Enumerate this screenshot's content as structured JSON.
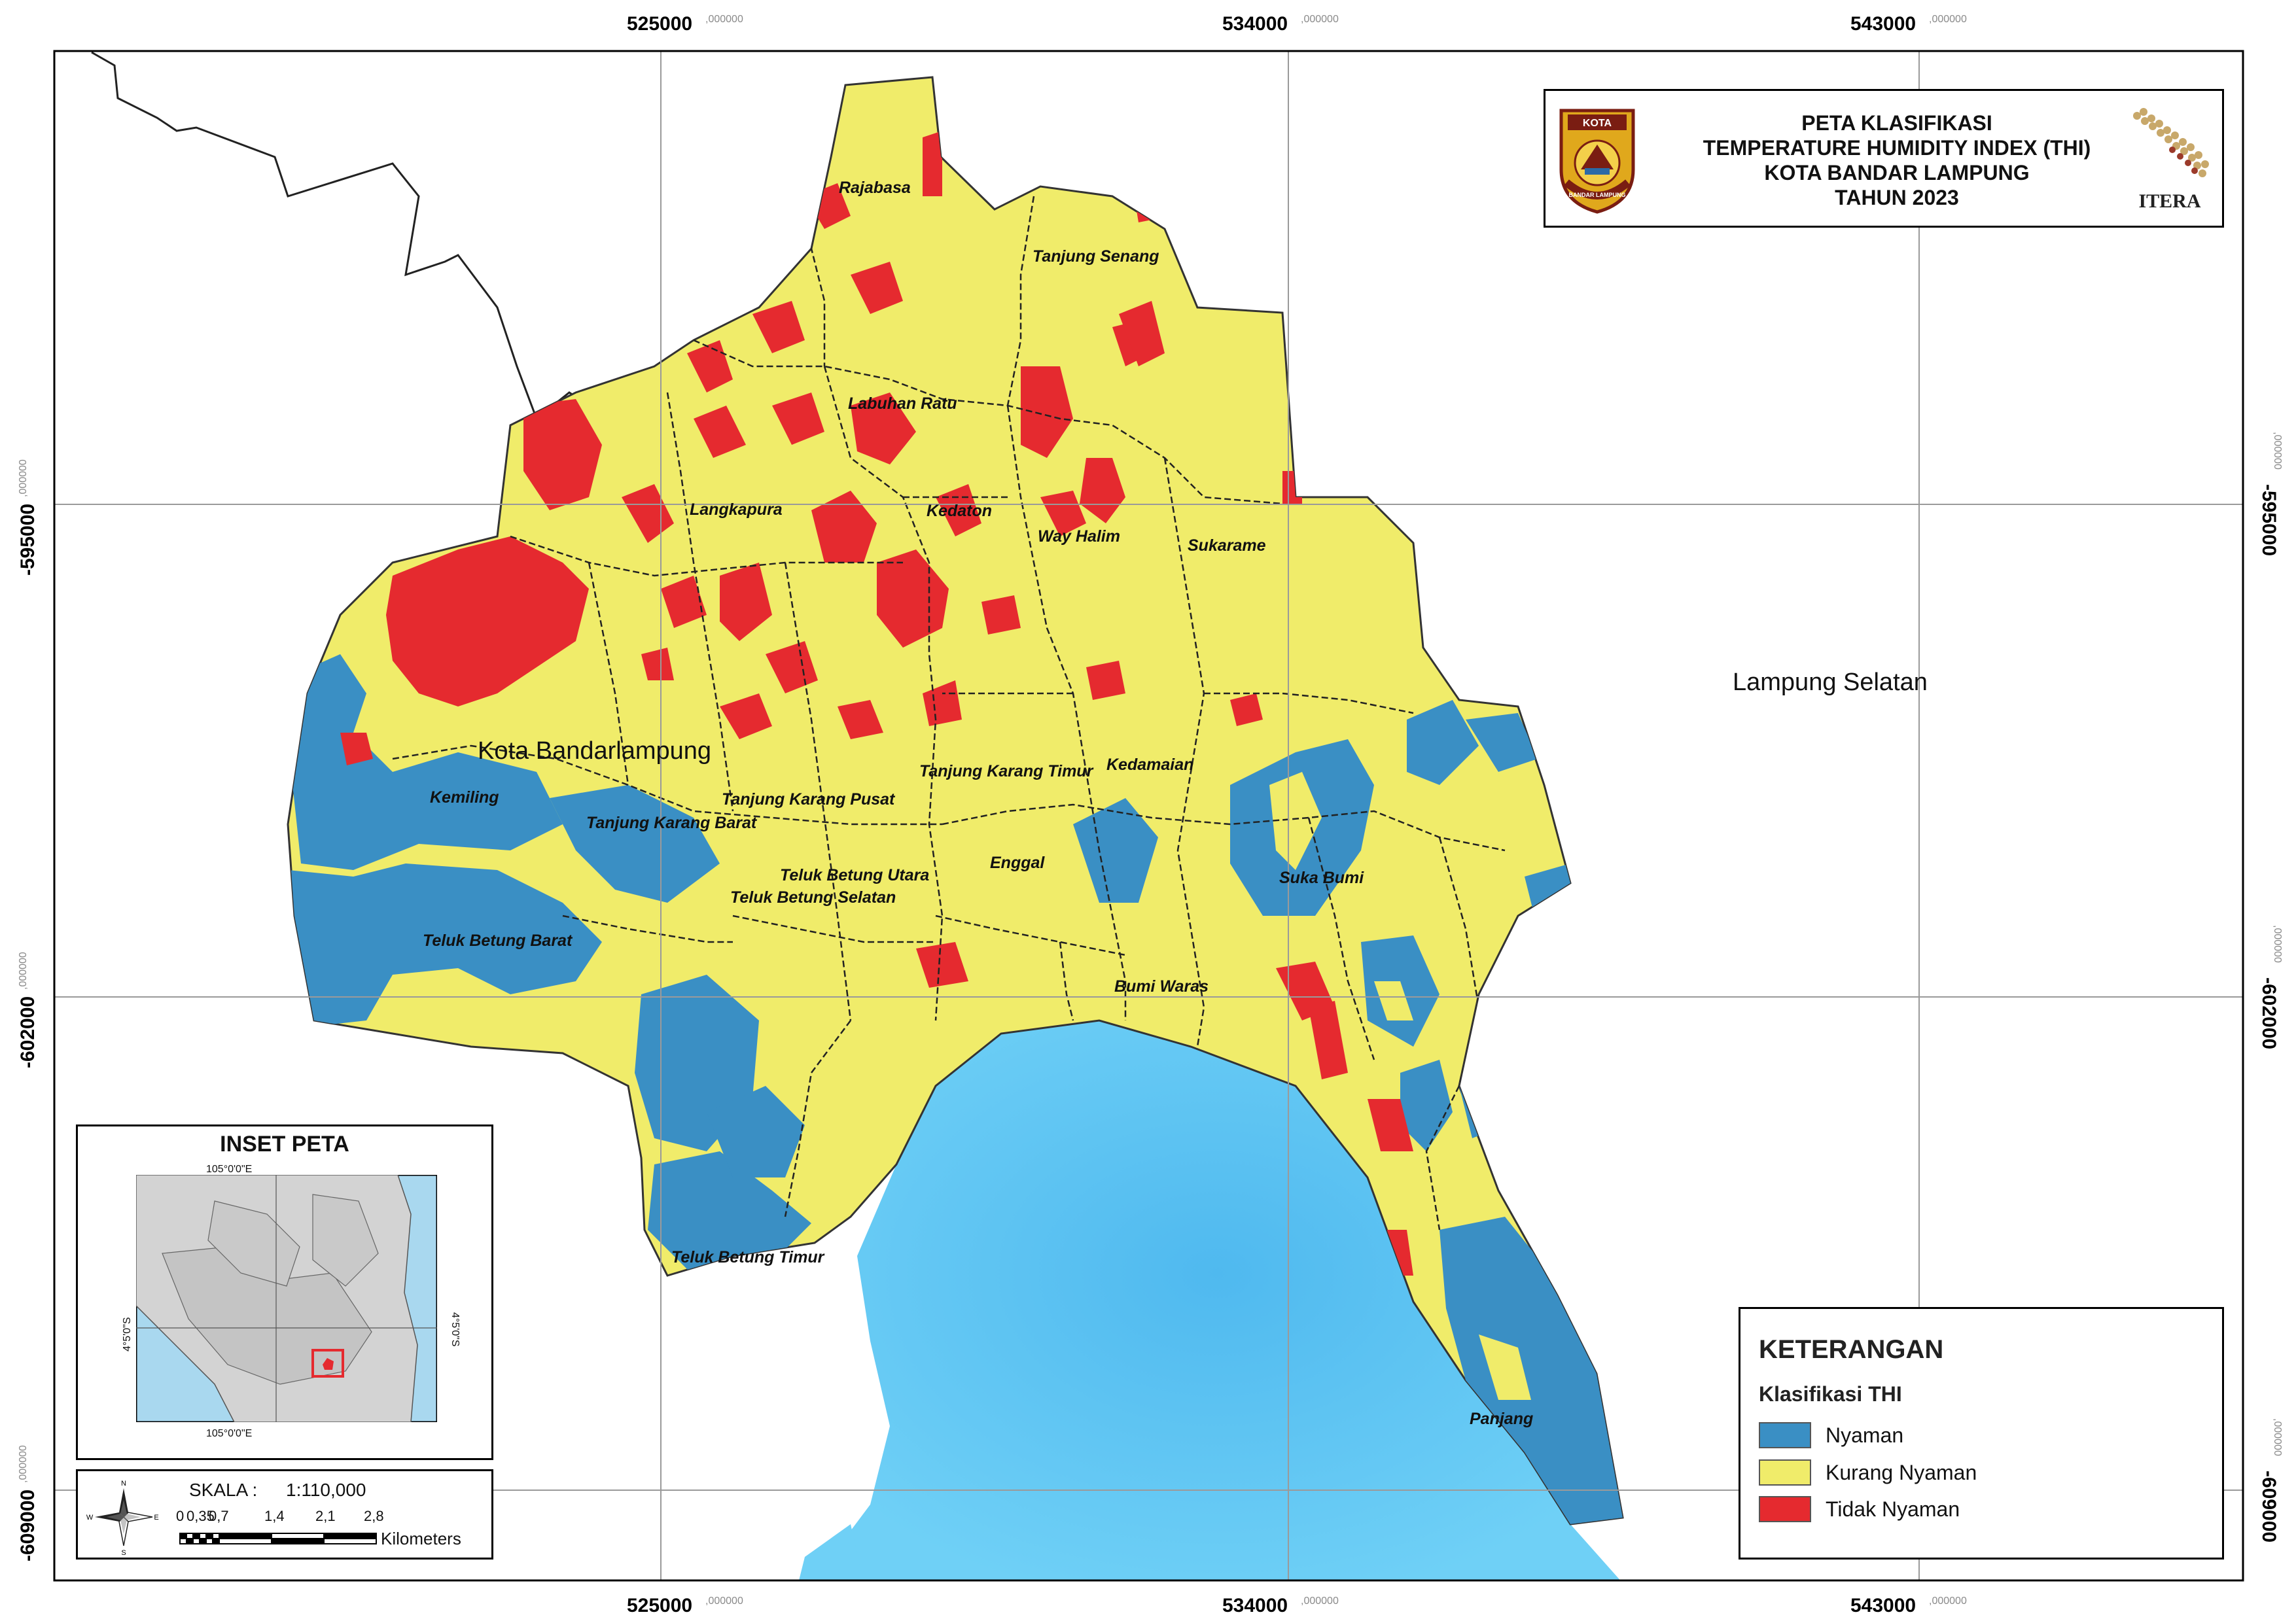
{
  "map": {
    "colors": {
      "nyaman": "#3a8fc4",
      "kurang_nyaman": "#f0ec6a",
      "tidak_nyaman": "#e52a2f",
      "sea": "#5fc6f2",
      "frame": "#000000",
      "grid": "#9a9a9a"
    },
    "grid_x": [
      {
        "main": "525000",
        "sub": ",000000"
      },
      {
        "main": "534000",
        "sub": ",000000"
      },
      {
        "main": "543000",
        "sub": ",000000"
      }
    ],
    "grid_y": [
      {
        "main": "-595000",
        "sub": ",000000"
      },
      {
        "main": "-602000",
        "sub": ",000000"
      },
      {
        "main": "-609000",
        "sub": ",000000"
      }
    ],
    "districts": [
      "Rajabasa",
      "Tanjung Senang",
      "Labuhan Ratu",
      "Langkapura",
      "Kedaton",
      "Way Halim",
      "Sukarame",
      "Kemiling",
      "Tanjung Karang Barat",
      "Tanjung Karang Pusat",
      "Tanjung Karang Timur",
      "Kedamaian",
      "Teluk Betung Utara",
      "Teluk Betung Selatan",
      "Enggal",
      "Teluk Betung Barat",
      "Suka Bumi",
      "Bumi Waras",
      "Teluk Betung Timur",
      "Panjang"
    ],
    "region_labels": {
      "city": "Kota Bandarlampung",
      "neighbor": "Lampung Selatan"
    }
  },
  "title": {
    "line1": "PETA KLASIFIKASI",
    "line2": "TEMPERATURE HUMIDITY INDEX (THI)",
    "line3": "KOTA BANDAR LAMPUNG",
    "line4": "TAHUN 2023",
    "logo_left_text_top": "KOTA",
    "logo_left_text_bottom": "BANDAR LAMPUNG",
    "logo_right_text": "ITERA"
  },
  "inset": {
    "title": "INSET PETA",
    "lon_label": "105°0'0\"E",
    "lat_label": "4°5'0\"S"
  },
  "scale": {
    "label": "SKALA :",
    "ratio": "1:110,000",
    "ticks": [
      "0",
      "0,35",
      "0,7",
      "1,4",
      "2,1",
      "2,8"
    ],
    "unit": "Kilometers",
    "compass": [
      "N",
      "S",
      "E",
      "W"
    ]
  },
  "legend": {
    "title": "KETERANGAN",
    "subtitle": "Klasifikasi THI",
    "items": [
      {
        "label": "Nyaman",
        "color": "#3a8fc4"
      },
      {
        "label": "Kurang Nyaman",
        "color": "#f0ec6a"
      },
      {
        "label": "Tidak Nyaman",
        "color": "#e52a2f"
      }
    ]
  }
}
